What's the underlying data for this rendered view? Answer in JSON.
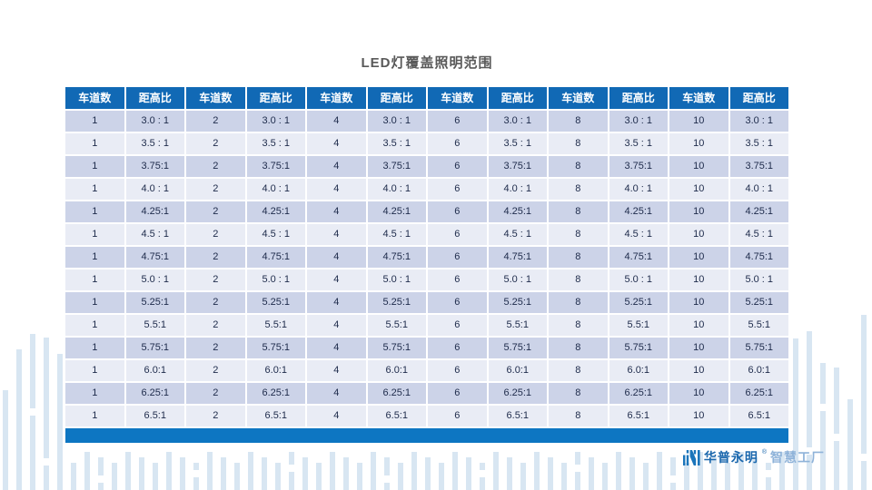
{
  "title": "LED灯覆盖照明范围",
  "table": {
    "column_headers": {
      "lanes": "车道数",
      "ratio": "距高比"
    },
    "pair_count": 6,
    "lanes_per_pair": [
      "1",
      "2",
      "4",
      "6",
      "8",
      "10"
    ],
    "ratio_rows": [
      "3.0 : 1",
      "3.5 : 1",
      "3.75:1",
      "4.0 : 1",
      "4.25:1",
      "4.5 : 1",
      "4.75:1",
      "5.0 : 1",
      "5.25:1",
      "5.5:1",
      "5.75:1",
      "6.0:1",
      "6.25:1",
      "6.5:1"
    ]
  },
  "brand": {
    "name": "华普永明",
    "mark": "®",
    "suffix": "智慧工厂"
  },
  "colors": {
    "background": "#ffffff",
    "header_blue": "#1169b5",
    "footer_blue": "#0d76c2",
    "row_dark": "#ccd3e8",
    "row_light": "#e9ecf5",
    "cell_text": "#1d2a4a",
    "deco_bar": "#d8e6f2",
    "title_gray": "#595959",
    "brand_blue": "#1a67ad",
    "brand_light_blue": "#8fb3d9"
  }
}
